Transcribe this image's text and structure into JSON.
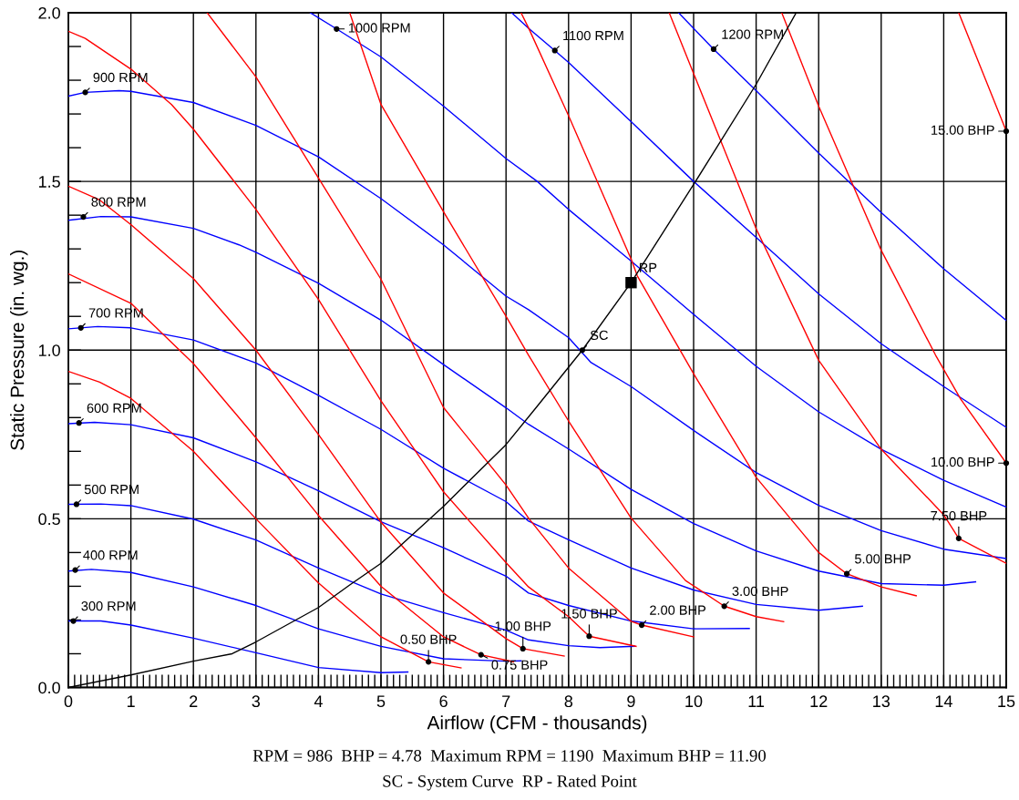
{
  "chart_data": {
    "type": "line",
    "xlabel": "Airflow (CFM - thousands)",
    "ylabel": "Static Pressure (in. wg.)",
    "xlim": [
      0,
      15
    ],
    "ylim": [
      0,
      2
    ],
    "xticks": [
      0,
      1,
      2,
      3,
      4,
      5,
      6,
      7,
      8,
      9,
      10,
      11,
      12,
      13,
      14,
      15,
      {
        "value": 0.1,
        "label": null
      },
      {
        "value": 0.2,
        "label": null
      },
      {
        "value": 0.3,
        "label": null
      },
      {
        "value": 0.4,
        "label": null
      },
      {
        "value": 0.5,
        "label": null
      },
      {
        "value": 0.6,
        "label": null
      },
      {
        "value": 0.7,
        "label": null
      },
      {
        "value": 0.8,
        "label": null
      },
      {
        "value": 0.9,
        "label": null
      },
      {
        "value": 1.1,
        "label": null
      },
      {
        "value": 1.2,
        "label": null
      },
      {
        "value": 1.3,
        "label": null
      },
      {
        "value": 1.4,
        "label": null
      },
      {
        "value": 1.5,
        "label": null
      },
      {
        "value": 1.6,
        "label": null
      },
      {
        "value": 1.7,
        "label": null
      },
      {
        "value": 1.8,
        "label": null
      },
      {
        "value": 1.9,
        "label": null
      },
      {
        "value": 2.1,
        "label": null
      },
      {
        "value": 2.2,
        "label": null
      },
      {
        "value": 2.3,
        "label": null
      },
      {
        "value": 2.4,
        "label": null
      },
      {
        "value": 2.5,
        "label": null
      },
      {
        "value": 2.6,
        "label": null
      },
      {
        "value": 2.7,
        "label": null
      },
      {
        "value": 2.8,
        "label": null
      },
      {
        "value": 2.9,
        "label": null
      },
      {
        "value": 3.1,
        "label": null
      },
      {
        "value": 3.2,
        "label": null
      },
      {
        "value": 3.3,
        "label": null
      },
      {
        "value": 3.4,
        "label": null
      },
      {
        "value": 3.5,
        "label": null
      },
      {
        "value": 3.6,
        "label": null
      },
      {
        "value": 3.7,
        "label": null
      },
      {
        "value": 3.8,
        "label": null
      },
      {
        "value": 3.9,
        "label": null
      },
      {
        "value": 4.1,
        "label": null
      },
      {
        "value": 4.2,
        "label": null
      },
      {
        "value": 4.3,
        "label": null
      },
      {
        "value": 4.4,
        "label": null
      },
      {
        "value": 4.5,
        "label": null
      },
      {
        "value": 4.6,
        "label": null
      },
      {
        "value": 4.7,
        "label": null
      },
      {
        "value": 4.8,
        "label": null
      },
      {
        "value": 4.9,
        "label": null
      },
      {
        "value": 5.1,
        "label": null
      },
      {
        "value": 5.2,
        "label": null
      },
      {
        "value": 5.3,
        "label": null
      },
      {
        "value": 5.4,
        "label": null
      },
      {
        "value": 5.5,
        "label": null
      },
      {
        "value": 5.6,
        "label": null
      },
      {
        "value": 5.7,
        "label": null
      },
      {
        "value": 5.8,
        "label": null
      },
      {
        "value": 5.9,
        "label": null
      },
      {
        "value": 6.1,
        "label": null
      },
      {
        "value": 6.2,
        "label": null
      },
      {
        "value": 6.3,
        "label": null
      },
      {
        "value": 6.4,
        "label": null
      },
      {
        "value": 6.5,
        "label": null
      },
      {
        "value": 6.6,
        "label": null
      },
      {
        "value": 6.7,
        "label": null
      },
      {
        "value": 6.8,
        "label": null
      },
      {
        "value": 6.9,
        "label": null
      },
      {
        "value": 7.1,
        "label": null
      },
      {
        "value": 7.2,
        "label": null
      },
      {
        "value": 7.3,
        "label": null
      },
      {
        "value": 7.4,
        "label": null
      },
      {
        "value": 7.5,
        "label": null
      },
      {
        "value": 7.6,
        "label": null
      },
      {
        "value": 7.7,
        "label": null
      },
      {
        "value": 7.8,
        "label": null
      },
      {
        "value": 7.9,
        "label": null
      },
      {
        "value": 8.1,
        "label": null
      },
      {
        "value": 8.2,
        "label": null
      },
      {
        "value": 8.3,
        "label": null
      },
      {
        "value": 8.4,
        "label": null
      },
      {
        "value": 8.5,
        "label": null
      },
      {
        "value": 8.6,
        "label": null
      },
      {
        "value": 8.7,
        "label": null
      },
      {
        "value": 8.8,
        "label": null
      },
      {
        "value": 8.9,
        "label": null
      },
      {
        "value": 9.1,
        "label": null
      },
      {
        "value": 9.2,
        "label": null
      },
      {
        "value": 9.3,
        "label": null
      },
      {
        "value": 9.4,
        "label": null
      },
      {
        "value": 9.5,
        "label": null
      },
      {
        "value": 9.6,
        "label": null
      },
      {
        "value": 9.7,
        "label": null
      },
      {
        "value": 9.8,
        "label": null
      },
      {
        "value": 9.9,
        "label": null
      },
      {
        "value": 10.1,
        "label": null
      },
      {
        "value": 10.2,
        "label": null
      },
      {
        "value": 10.3,
        "label": null
      },
      {
        "value": 10.4,
        "label": null
      },
      {
        "value": 10.5,
        "label": null
      },
      {
        "value": 10.6,
        "label": null
      },
      {
        "value": 10.7,
        "label": null
      },
      {
        "value": 10.8,
        "label": null
      },
      {
        "value": 10.9,
        "label": null
      },
      {
        "value": 11.1,
        "label": null
      },
      {
        "value": 11.2,
        "label": null
      },
      {
        "value": 11.3,
        "label": null
      },
      {
        "value": 11.4,
        "label": null
      },
      {
        "value": 11.5,
        "label": null
      },
      {
        "value": 11.6,
        "label": null
      },
      {
        "value": 11.7,
        "label": null
      },
      {
        "value": 11.8,
        "label": null
      },
      {
        "value": 11.9,
        "label": null
      },
      {
        "value": 12.1,
        "label": null
      },
      {
        "value": 12.2,
        "label": null
      },
      {
        "value": 12.3,
        "label": null
      },
      {
        "value": 12.4,
        "label": null
      },
      {
        "value": 12.5,
        "label": null
      },
      {
        "value": 12.6,
        "label": null
      },
      {
        "value": 12.7,
        "label": null
      },
      {
        "value": 12.8,
        "label": null
      },
      {
        "value": 12.9,
        "label": null
      },
      {
        "value": 13.1,
        "label": null
      },
      {
        "value": 13.2,
        "label": null
      },
      {
        "value": 13.3,
        "label": null
      },
      {
        "value": 13.4,
        "label": null
      },
      {
        "value": 13.5,
        "label": null
      },
      {
        "value": 13.6,
        "label": null
      },
      {
        "value": 13.7,
        "label": null
      },
      {
        "value": 13.8,
        "label": null
      },
      {
        "value": 13.9,
        "label": null
      },
      {
        "value": 14.1,
        "label": null
      },
      {
        "value": 14.2,
        "label": null
      },
      {
        "value": 14.3,
        "label": null
      },
      {
        "value": 14.4,
        "label": null
      },
      {
        "value": 14.5,
        "label": null
      },
      {
        "value": 14.6,
        "label": null
      },
      {
        "value": 14.7,
        "label": null
      },
      {
        "value": 14.8,
        "label": null
      },
      {
        "value": 14.9,
        "label": null
      }
    ],
    "yticks": [
      {
        "value": 0,
        "label": "0.0"
      },
      0.5,
      {
        "value": 1,
        "label": "1.0"
      },
      1.5,
      {
        "value": 2,
        "label": "2.0"
      },
      {
        "value": 0.1,
        "label": null
      },
      {
        "value": 0.2,
        "label": null
      },
      {
        "value": 0.3,
        "label": null
      },
      {
        "value": 0.4,
        "label": null
      },
      {
        "value": 0.6,
        "label": null
      },
      {
        "value": 0.7,
        "label": null
      },
      {
        "value": 0.8,
        "label": null
      },
      {
        "value": 0.9,
        "label": null
      },
      {
        "value": 1.1,
        "label": null
      },
      {
        "value": 1.2,
        "label": null
      },
      {
        "value": 1.3,
        "label": null
      },
      {
        "value": 1.4,
        "label": null
      },
      {
        "value": 1.6,
        "label": null
      },
      {
        "value": 1.7,
        "label": null
      },
      {
        "value": 1.8,
        "label": null
      },
      {
        "value": 1.9,
        "label": null
      }
    ],
    "grid": true,
    "marker": "none",
    "line_style": "solid",
    "series": [
      {
        "color": "#0000ff",
        "x": [
          0,
          0.52,
          1,
          2,
          3,
          4,
          5,
          5.43
        ],
        "values": [
          0.197,
          0.197,
          0.185,
          0.146,
          0.103,
          0.059,
          0.044,
          0.046
        ]
      },
      {
        "color": "#0000ff",
        "x": [
          0,
          0.37,
          1,
          2,
          3,
          4,
          5,
          6,
          7,
          7.24
        ],
        "values": [
          0.345,
          0.35,
          0.341,
          0.298,
          0.243,
          0.174,
          0.122,
          0.085,
          0.078,
          0.079
        ]
      },
      {
        "color": "#0000ff",
        "x": [
          0,
          0.52,
          1,
          2,
          3,
          4,
          5,
          6,
          7,
          7.36,
          8,
          8.5,
          9.06
        ],
        "values": [
          0.543,
          0.544,
          0.539,
          0.499,
          0.437,
          0.354,
          0.277,
          0.222,
          0.17,
          0.141,
          0.124,
          0.118,
          0.122
        ]
      },
      {
        "color": "#0000ff",
        "x": [
          0,
          0.42,
          1,
          2,
          3,
          4,
          5,
          6,
          7,
          7.36,
          8,
          9,
          10,
          10.89
        ],
        "values": [
          0.782,
          0.786,
          0.779,
          0.74,
          0.669,
          0.583,
          0.491,
          0.414,
          0.33,
          0.28,
          0.243,
          0.197,
          0.174,
          0.175
        ]
      },
      {
        "color": "#0000ff",
        "x": [
          0,
          0.47,
          1,
          2,
          3,
          4,
          5,
          6,
          7,
          7.36,
          8,
          9,
          10,
          11,
          12,
          12.7
        ],
        "values": [
          1.063,
          1.07,
          1.066,
          1.03,
          0.962,
          0.866,
          0.765,
          0.65,
          0.551,
          0.493,
          0.438,
          0.354,
          0.289,
          0.246,
          0.229,
          0.241
        ]
      },
      {
        "color": "#0000ff",
        "x": [
          0,
          0.52,
          1,
          2,
          2.73,
          3,
          4,
          5,
          6,
          7,
          7.36,
          8,
          9,
          10,
          11,
          12,
          13,
          14,
          14.51
        ],
        "values": [
          1.385,
          1.396,
          1.395,
          1.361,
          1.312,
          1.29,
          1.198,
          1.089,
          0.957,
          0.829,
          0.78,
          0.707,
          0.587,
          0.486,
          0.405,
          0.345,
          0.308,
          0.303,
          0.313
        ]
      },
      {
        "color": "#0000ff",
        "x": [
          0,
          0.27,
          0.81,
          1,
          2,
          3,
          4,
          5,
          6,
          7,
          7.36,
          8,
          8.36,
          9,
          10,
          11,
          12,
          13,
          14,
          15
        ],
        "values": [
          1.753,
          1.764,
          1.769,
          1.767,
          1.734,
          1.666,
          1.573,
          1.449,
          1.312,
          1.16,
          1.12,
          1.037,
          0.963,
          0.892,
          0.762,
          0.637,
          0.54,
          0.465,
          0.41,
          0.382
        ]
      },
      {
        "color": "#0000ff",
        "x": [
          3.87,
          4.29,
          5,
          6,
          7,
          7.5,
          8,
          9,
          10,
          11,
          12,
          13,
          14,
          15
        ],
        "values": [
          2.0,
          1.952,
          1.869,
          1.723,
          1.568,
          1.5,
          1.417,
          1.264,
          1.106,
          0.952,
          0.817,
          0.706,
          0.614,
          0.535
        ]
      },
      {
        "color": "#0000ff",
        "x": [
          7.09,
          7.36,
          7.78,
          8,
          9,
          10,
          11,
          12,
          13,
          14,
          15
        ],
        "values": [
          2.0,
          1.954,
          1.888,
          1.853,
          1.677,
          1.5,
          1.334,
          1.167,
          1.019,
          0.892,
          0.771
        ]
      },
      {
        "color": "#0000ff",
        "x": [
          9.76,
          10.32,
          11,
          12,
          13,
          14,
          15
        ],
        "values": [
          2.0,
          1.892,
          1.769,
          1.584,
          1.408,
          1.241,
          1.088
        ]
      },
      {
        "color": "#ff0000",
        "x": [
          0,
          0.5,
          1,
          2,
          3,
          4,
          5,
          5.76,
          6.28
        ],
        "values": [
          0.937,
          0.905,
          0.857,
          0.7,
          0.5,
          0.31,
          0.15,
          0.076,
          0.058
        ]
      },
      {
        "color": "#ff0000",
        "x": [
          0,
          1,
          2,
          3,
          4,
          5,
          6,
          6.6,
          7.12
        ],
        "values": [
          1.226,
          1.139,
          0.96,
          0.74,
          0.51,
          0.3,
          0.15,
          0.097,
          0.076
        ]
      },
      {
        "color": "#ff0000",
        "x": [
          0,
          0.5,
          1,
          2,
          3,
          4,
          5,
          6,
          7,
          7.27,
          7.93
        ],
        "values": [
          1.486,
          1.445,
          1.372,
          1.212,
          1.0,
          0.75,
          0.49,
          0.28,
          0.145,
          0.115,
          0.093
        ]
      },
      {
        "color": "#ff0000",
        "x": [
          0,
          0.27,
          1,
          1.65,
          2,
          3,
          4,
          5,
          6,
          7,
          7.36,
          8,
          8.33,
          9.08
        ],
        "values": [
          1.945,
          1.924,
          1.833,
          1.728,
          1.655,
          1.417,
          1.15,
          0.85,
          0.58,
          0.37,
          0.298,
          0.21,
          0.152,
          0.122
        ]
      },
      {
        "color": "#ff0000",
        "x": [
          2.22,
          3,
          4,
          5,
          6,
          7,
          7.36,
          8,
          9,
          9.17,
          10
        ],
        "values": [
          2.0,
          1.81,
          1.51,
          1.21,
          0.83,
          0.6,
          0.502,
          0.354,
          0.196,
          0.185,
          0.15
        ]
      },
      {
        "color": "#ff0000",
        "x": [
          4.5,
          5,
          6,
          7,
          7.36,
          8,
          9,
          9.87,
          10.49,
          11,
          11.44
        ],
        "values": [
          2.0,
          1.728,
          1.41,
          1.1,
          0.985,
          0.79,
          0.502,
          0.317,
          0.241,
          0.21,
          0.195
        ]
      },
      {
        "color": "#ff0000",
        "x": [
          7.24,
          7.36,
          8,
          9,
          9.1,
          10,
          11,
          12,
          12.45,
          13,
          13.56
        ],
        "values": [
          2.0,
          1.955,
          1.695,
          1.27,
          1.22,
          0.93,
          0.623,
          0.4,
          0.337,
          0.298,
          0.272
        ]
      },
      {
        "color": "#ff0000",
        "x": [
          9.61,
          10,
          11,
          12,
          13,
          14,
          14.24,
          15
        ],
        "values": [
          2.0,
          1.82,
          1.36,
          0.97,
          0.706,
          0.512,
          0.442,
          0.368
        ]
      },
      {
        "color": "#ff0000",
        "x": [
          11.41,
          12,
          13,
          13.87,
          14.27,
          15
        ],
        "values": [
          2.0,
          1.723,
          1.296,
          0.985,
          0.855,
          0.665
        ]
      },
      {
        "color": "#ff0000",
        "x": [
          14.24,
          15
        ],
        "values": [
          2.0,
          1.649
        ]
      },
      {
        "color": "#000000",
        "x": [
          0,
          1,
          2,
          2.62,
          3,
          4,
          4.5,
          5,
          6,
          7,
          7.5,
          8.22,
          9,
          10,
          11,
          11.64
        ],
        "values": [
          0,
          0.037,
          0.078,
          0.1,
          0.135,
          0.237,
          0.304,
          0.368,
          0.537,
          0.72,
          0.834,
          1.0,
          1.2,
          1.491,
          1.788,
          2.0
        ]
      },
      {
        "type": "scatter",
        "marker": "square",
        "color": "#000000",
        "x": [
          9
        ],
        "values": [
          1.2
        ]
      }
    ],
    "annotations": [
      {
        "text": "300 RPM",
        "x": 0.08,
        "y": 0.197
      },
      {
        "text": "400 RPM",
        "x": 0.11,
        "y": 0.348
      },
      {
        "text": "500 RPM",
        "x": 0.13,
        "y": 0.543
      },
      {
        "text": "600 RPM",
        "x": 0.17,
        "y": 0.784
      },
      {
        "text": "700 RPM",
        "x": 0.2,
        "y": 1.066
      },
      {
        "text": "800 RPM",
        "x": 0.24,
        "y": 1.395
      },
      {
        "text": "900 RPM",
        "x": 0.27,
        "y": 1.764
      },
      {
        "text": "1000 RPM",
        "x": 4.29,
        "y": 1.952
      },
      {
        "text": "1100 RPM",
        "x": 7.78,
        "y": 1.888
      },
      {
        "text": "1200 RPM",
        "x": 10.32,
        "y": 1.892
      },
      {
        "text": "0.50 BHP",
        "x": 5.76,
        "y": 0.076
      },
      {
        "text": "0.75 BHP",
        "x": 6.6,
        "y": 0.097
      },
      {
        "text": "1.00 BHP",
        "x": 7.27,
        "y": 0.115
      },
      {
        "text": "1.50 BHP",
        "x": 8.33,
        "y": 0.152
      },
      {
        "text": "2.00 BHP",
        "x": 9.17,
        "y": 0.185
      },
      {
        "text": "3.00 BHP",
        "x": 10.49,
        "y": 0.241
      },
      {
        "text": "5.00 BHP",
        "x": 12.45,
        "y": 0.337
      },
      {
        "text": "7.50 BHP",
        "x": 14.24,
        "y": 0.442
      },
      {
        "text": "10.00 BHP",
        "x": 15,
        "y": 0.665
      },
      {
        "text": "15.00 BHP",
        "x": 15,
        "y": 1.649
      },
      {
        "text": "SC",
        "x": 8.22,
        "y": 1.0
      },
      {
        "text": "RP",
        "x": 9,
        "y": 1.2
      },
      "RPM = 986  BHP = 4.78  Maximum RPM = 1190  Maximum BHP = 11.90",
      "SC - System Curve  RP - Rated Point"
    ]
  }
}
